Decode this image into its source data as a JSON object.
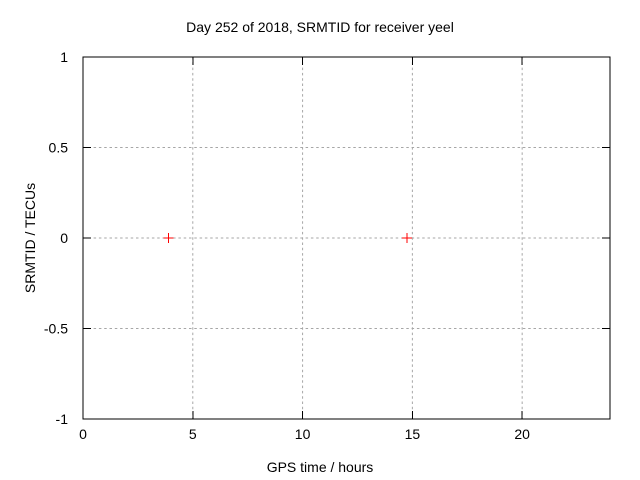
{
  "page": {
    "background": "#ffffff"
  },
  "chart_data": {
    "type": "scatter",
    "title": "Day 252 of 2018, SRMTID for receiver yeel",
    "xlabel": "GPS time / hours",
    "ylabel": "SRMTID / TECUs",
    "xlim": [
      0,
      24
    ],
    "ylim": [
      -1,
      1
    ],
    "grid": true,
    "legend": "none",
    "xticks": [
      {
        "value": 0,
        "label": "0"
      },
      {
        "value": 5,
        "label": "5"
      },
      {
        "value": 10,
        "label": "10"
      },
      {
        "value": 15,
        "label": "15"
      },
      {
        "value": 20,
        "label": "20"
      }
    ],
    "yticks": [
      {
        "value": -1,
        "label": "-1"
      },
      {
        "value": -0.5,
        "label": "-0.5"
      },
      {
        "value": 0,
        "label": "0"
      },
      {
        "value": 0.5,
        "label": "0.5"
      },
      {
        "value": 1,
        "label": "1"
      }
    ],
    "series": [
      {
        "name": "SRMTID",
        "marker": "plus",
        "marker_color": "#ff0000",
        "points": [
          {
            "x": 3.9,
            "y": 0.0
          },
          {
            "x": 14.75,
            "y": 0.0
          }
        ]
      }
    ],
    "style": {
      "border_color": "#000000",
      "grid_color": "#a6a6a6",
      "text_color": "#000000",
      "background": "#ffffff"
    }
  }
}
